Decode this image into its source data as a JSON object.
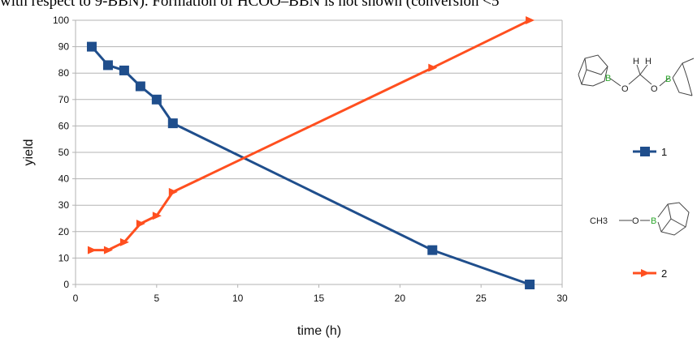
{
  "caption": "with respect to 9-BBN). Formation of HCOO–BBN is not shown (conversion <5",
  "chart_data": {
    "type": "line",
    "xlabel": "time (h)",
    "ylabel": "yield",
    "xlim": [
      0,
      30
    ],
    "ylim": [
      0,
      100
    ],
    "xticks": [
      0,
      5,
      10,
      15,
      20,
      25,
      30
    ],
    "yticks": [
      0,
      10,
      20,
      30,
      40,
      50,
      60,
      70,
      80,
      90,
      100
    ],
    "grid": "horizontal",
    "legend_position": "right",
    "series": [
      {
        "name": "1",
        "color": "#1f4e8c",
        "marker": "square",
        "x": [
          1,
          2,
          3,
          4,
          5,
          6,
          22,
          28
        ],
        "y": [
          90,
          83,
          81,
          75,
          70,
          61,
          13,
          0
        ]
      },
      {
        "name": "2",
        "color": "#ff4f1f",
        "marker": "triangle-right",
        "x": [
          1,
          2,
          3,
          4,
          5,
          6,
          22,
          28
        ],
        "y": [
          13,
          13,
          16,
          23,
          26,
          35,
          82,
          100
        ]
      }
    ],
    "structure_labels": {
      "s1_h1": "H",
      "s1_h2": "H",
      "s1_b1": "B",
      "s1_b2": "B",
      "s1_o1": "O",
      "s1_o2": "O",
      "s2_ch3": "CH3",
      "s2_o": "O",
      "s2_b": "B"
    }
  }
}
